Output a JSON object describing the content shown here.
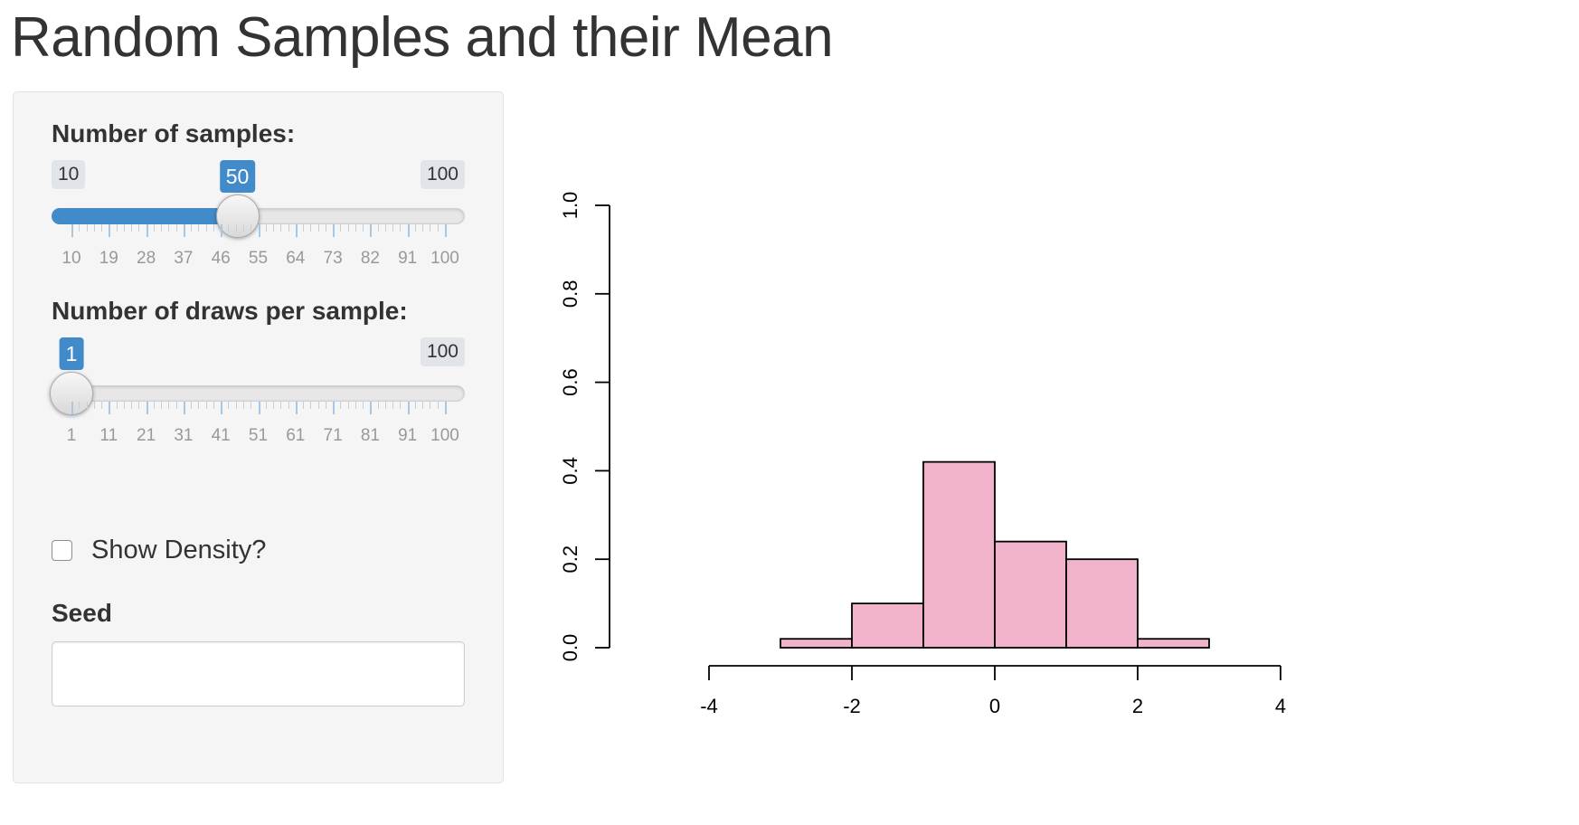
{
  "page": {
    "title": "Random Samples and their Mean"
  },
  "controls": {
    "samples_slider": {
      "label": "Number of samples:",
      "min": 10,
      "max": 100,
      "value": 50,
      "min_label": "10",
      "max_label": "100",
      "value_label": "50",
      "tick_labels": [
        "10",
        "19",
        "28",
        "37",
        "46",
        "55",
        "64",
        "73",
        "82",
        "91",
        "100"
      ]
    },
    "draws_slider": {
      "label": "Number of draws per sample:",
      "min": 1,
      "max": 100,
      "value": 1,
      "min_label": "",
      "max_label": "100",
      "value_label": "1",
      "tick_labels": [
        "1",
        "11",
        "21",
        "31",
        "41",
        "51",
        "61",
        "71",
        "81",
        "91",
        "100"
      ]
    },
    "density_checkbox": {
      "label": "Show Density?",
      "checked": false
    },
    "seed": {
      "label": "Seed",
      "value": ""
    },
    "accent_color": "#428bca"
  },
  "chart_data": {
    "type": "bar",
    "bin_edges": [
      -3,
      -2,
      -1,
      0,
      1,
      2,
      3
    ],
    "values": [
      0.02,
      0.1,
      0.42,
      0.24,
      0.2,
      0.02
    ],
    "xlim": [
      -4,
      4
    ],
    "ylim": [
      0,
      1
    ],
    "x_ticks": [
      -4,
      -2,
      0,
      2,
      4
    ],
    "y_ticks": [
      0.0,
      0.2,
      0.4,
      0.6,
      0.8,
      1.0
    ],
    "x_tick_labels": [
      "-4",
      "-2",
      "0",
      "2",
      "4"
    ],
    "y_tick_labels": [
      "0.0",
      "0.2",
      "0.4",
      "0.6",
      "0.8",
      "1.0"
    ],
    "bar_color": "#f0b3cb",
    "grid": false
  }
}
